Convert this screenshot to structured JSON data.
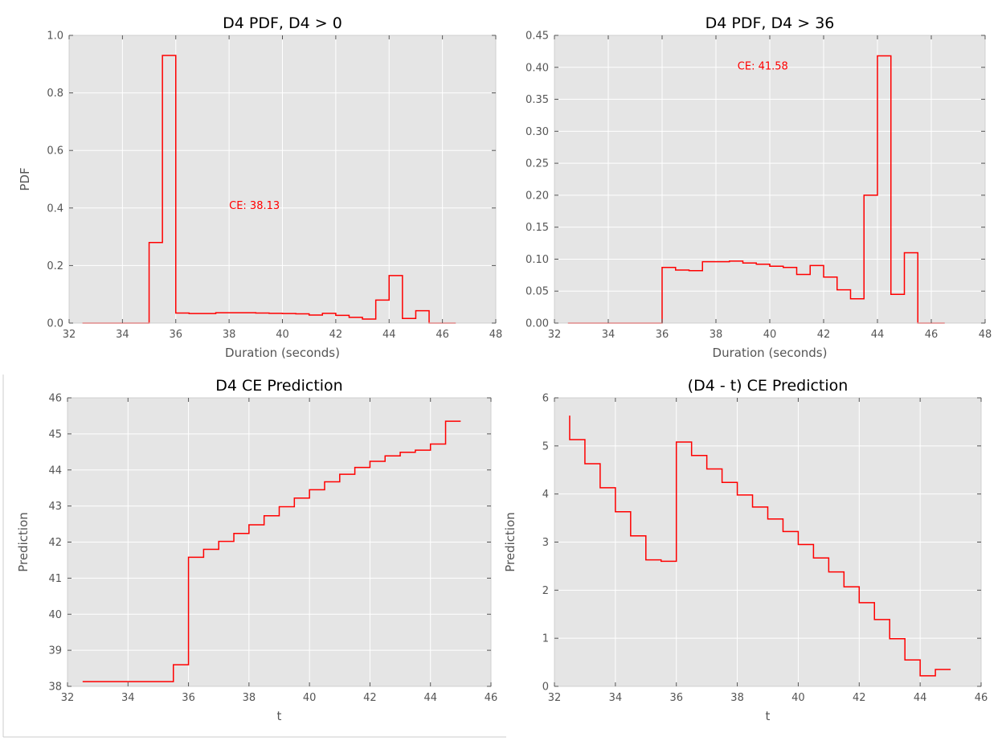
{
  "chart_data": [
    {
      "type": "line",
      "title": "D4 PDF, D4 > 0",
      "xlabel": "Duration (seconds)",
      "ylabel": "PDF",
      "xlim": [
        32,
        48
      ],
      "ylim": [
        0,
        1.0
      ],
      "xticks": [
        "32",
        "34",
        "36",
        "38",
        "40",
        "42",
        "44",
        "46",
        "48"
      ],
      "xtick_values": [
        32,
        34,
        36,
        38,
        40,
        42,
        44,
        46,
        48
      ],
      "yticks": [
        "0.0",
        "0.2",
        "0.4",
        "0.6",
        "0.8",
        "1.0"
      ],
      "ytick_values": [
        0,
        0.2,
        0.4,
        0.6,
        0.8,
        1.0
      ],
      "grid": true,
      "color": "#ff0000",
      "annotation": {
        "text": "CE: 38.13",
        "x": 38.0,
        "y": 0.41
      },
      "x": [
        32.5,
        33.0,
        33.5,
        34.0,
        34.5,
        35.0,
        35.5,
        36.0,
        36.5,
        37.0,
        37.5,
        38.0,
        38.5,
        39.0,
        39.5,
        40.0,
        40.5,
        41.0,
        41.5,
        42.0,
        42.5,
        43.0,
        43.5,
        44.0,
        44.5,
        45.0,
        45.5,
        46.0
      ],
      "values": [
        0,
        0,
        0,
        0,
        0,
        0.28,
        0.93,
        0.035,
        0.033,
        0.033,
        0.036,
        0.036,
        0.036,
        0.035,
        0.034,
        0.033,
        0.032,
        0.028,
        0.034,
        0.027,
        0.02,
        0.014,
        0.08,
        0.165,
        0.016,
        0.043,
        0,
        0
      ],
      "x_end": 46.5
    },
    {
      "type": "line",
      "title": "D4 PDF, D4 > 36",
      "xlabel": "Duration (seconds)",
      "ylabel": "",
      "xlim": [
        32,
        48
      ],
      "ylim": [
        0,
        0.45
      ],
      "xticks": [
        "32",
        "34",
        "36",
        "38",
        "40",
        "42",
        "44",
        "46",
        "48"
      ],
      "xtick_values": [
        32,
        34,
        36,
        38,
        40,
        42,
        44,
        46,
        48
      ],
      "yticks": [
        "0.00",
        "0.05",
        "0.10",
        "0.15",
        "0.20",
        "0.25",
        "0.30",
        "0.35",
        "0.40",
        "0.45"
      ],
      "ytick_values": [
        0,
        0.05,
        0.1,
        0.15,
        0.2,
        0.25,
        0.3,
        0.35,
        0.4,
        0.45
      ],
      "grid": true,
      "color": "#ff0000",
      "annotation": {
        "text": "CE: 41.58",
        "x": 38.8,
        "y": 0.403
      },
      "x": [
        32.5,
        33.0,
        33.5,
        34.0,
        34.5,
        35.0,
        35.5,
        36.0,
        36.5,
        37.0,
        37.5,
        38.0,
        38.5,
        39.0,
        39.5,
        40.0,
        40.5,
        41.0,
        41.5,
        42.0,
        42.5,
        43.0,
        43.5,
        44.0,
        44.5,
        45.0,
        45.5,
        46.0
      ],
      "values": [
        0,
        0,
        0,
        0,
        0,
        0,
        0,
        0.087,
        0.083,
        0.082,
        0.096,
        0.096,
        0.097,
        0.094,
        0.092,
        0.089,
        0.087,
        0.076,
        0.09,
        0.072,
        0.052,
        0.038,
        0.2,
        0.418,
        0.045,
        0.11,
        0,
        0
      ],
      "x_end": 46.5
    },
    {
      "type": "line",
      "title": "D4 CE Prediction",
      "xlabel": "t",
      "ylabel": "Prediction",
      "xlim": [
        32,
        46
      ],
      "ylim": [
        38,
        46
      ],
      "xticks": [
        "32",
        "34",
        "36",
        "38",
        "40",
        "42",
        "44",
        "46"
      ],
      "xtick_values": [
        32,
        34,
        36,
        38,
        40,
        42,
        44,
        46
      ],
      "yticks": [
        "38",
        "39",
        "40",
        "41",
        "42",
        "43",
        "44",
        "45",
        "46"
      ],
      "ytick_values": [
        38,
        39,
        40,
        41,
        42,
        43,
        44,
        45,
        46
      ],
      "grid": true,
      "color": "#ff0000",
      "x": [
        32.5,
        33.0,
        33.5,
        34.0,
        34.5,
        35.0,
        35.5,
        36.0,
        36.5,
        37.0,
        37.5,
        38.0,
        38.5,
        39.0,
        39.5,
        40.0,
        40.5,
        41.0,
        41.5,
        42.0,
        42.5,
        43.0,
        43.5,
        44.0,
        44.5
      ],
      "values": [
        38.13,
        38.13,
        38.13,
        38.13,
        38.13,
        38.13,
        38.6,
        41.58,
        41.8,
        42.02,
        42.24,
        42.48,
        42.73,
        42.98,
        43.22,
        43.45,
        43.67,
        43.88,
        44.07,
        44.24,
        44.39,
        44.49,
        44.55,
        44.72,
        45.35
      ],
      "x_end": 45.0
    },
    {
      "type": "line",
      "title": "(D4 - t) CE Prediction",
      "xlabel": "t",
      "ylabel": "Prediction",
      "xlim": [
        32,
        46
      ],
      "ylim": [
        0,
        6
      ],
      "xticks": [
        "32",
        "34",
        "36",
        "38",
        "40",
        "42",
        "44",
        "46"
      ],
      "xtick_values": [
        32,
        34,
        36,
        38,
        40,
        42,
        44,
        46
      ],
      "yticks": [
        "0",
        "1",
        "2",
        "3",
        "4",
        "5",
        "6"
      ],
      "ytick_values": [
        0,
        1,
        2,
        3,
        4,
        5,
        6
      ],
      "grid": true,
      "color": "#ff0000",
      "start_value": 5.63,
      "x": [
        32.5,
        33.0,
        33.5,
        34.0,
        34.5,
        35.0,
        35.5,
        36.0,
        36.5,
        37.0,
        37.5,
        38.0,
        38.5,
        39.0,
        39.5,
        40.0,
        40.5,
        41.0,
        41.5,
        42.0,
        42.5,
        43.0,
        43.5,
        44.0,
        44.5
      ],
      "values": [
        5.13,
        4.63,
        4.13,
        3.63,
        3.13,
        2.63,
        2.6,
        5.08,
        4.8,
        4.52,
        4.24,
        3.98,
        3.73,
        3.48,
        3.22,
        2.95,
        2.67,
        2.38,
        2.07,
        1.74,
        1.39,
        0.99,
        0.55,
        0.22,
        0.35
      ],
      "x_end": 45.0
    }
  ]
}
